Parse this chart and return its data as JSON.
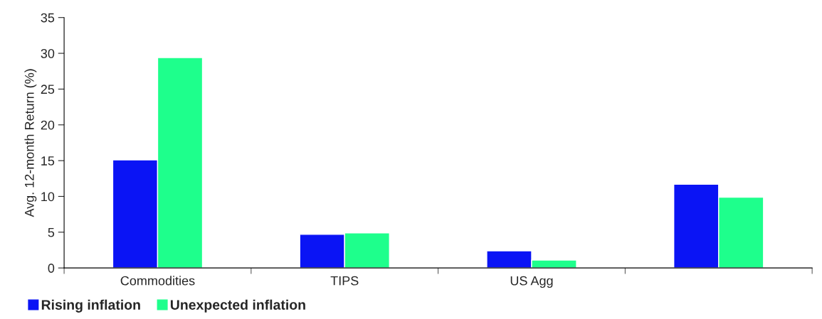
{
  "chart_data": {
    "type": "bar",
    "ylabel": "Avg. 12-month Return (%)",
    "categories": [
      "Commodities",
      "TIPS",
      "US Agg",
      null
    ],
    "series": [
      {
        "name": "Rising inflation",
        "color": "#0a14f5",
        "values": [
          15.1,
          4.7,
          2.4,
          11.7
        ]
      },
      {
        "name": "Unexpected inflation",
        "color": "#1eff8c",
        "values": [
          29.4,
          4.9,
          1.1,
          9.9
        ]
      }
    ],
    "ylim": [
      0,
      35
    ],
    "yticks": [
      0,
      5,
      10,
      15,
      20,
      25,
      30,
      35
    ],
    "grid": false,
    "legend": "bottom left"
  }
}
